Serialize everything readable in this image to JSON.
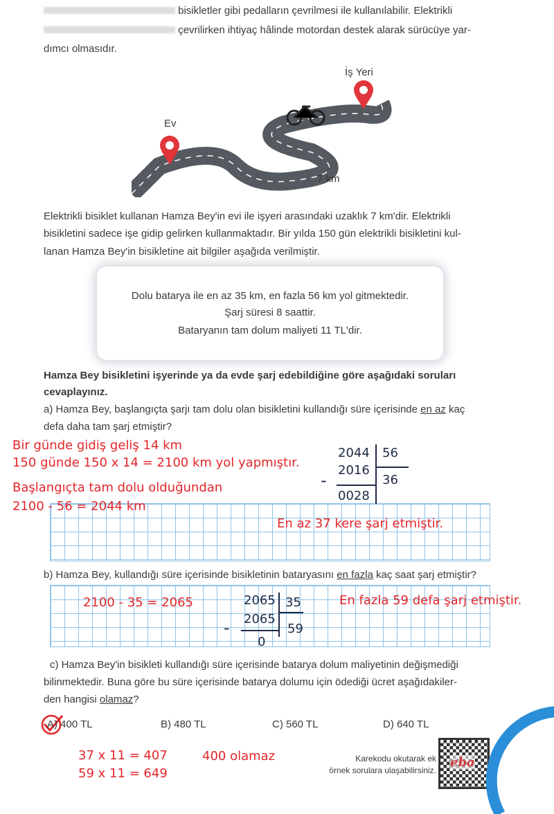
{
  "intro": {
    "line1_visible": "bisikletler gibi pedalların çevrilmesi ile kullanılabilir. Elektrikli",
    "line2_visible": "çevrilirken ihtiyaç hâlinde motordan destek alarak sürücüye yar-",
    "line3": "dımcı olmasıdır."
  },
  "illustration": {
    "workplace_label": "İş Yeri",
    "home_label": "Ev",
    "distance_label": "7 km"
  },
  "paragraph": [
    "Elektrikli bisiklet kullanan Hamza Bey'in evi ile işyeri arasındaki uzaklık 7 km'dir. Elektrikli",
    "bisikletini sadece işe gidip gelirken kullanmaktadır. Bir yılda 150 gün elektrikli bisikletini kul-",
    "lanan Hamza Bey'in bisikletine ait bilgiler aşağıda verilmiştir."
  ],
  "info_box": [
    "Dolu batarya ile en az 35 km, en fazla 56 km yol gitmektedir.",
    "Şarj süresi 8 saattir.",
    "Bataryanın tam dolum maliyeti 11 TL'dir."
  ],
  "instruction": [
    "Hamza Bey bisikletini işyerinde ya da evde şarj edebildiğine göre aşağıdaki soruları",
    "cevaplayınız."
  ],
  "question_a": {
    "line1_pre": "a) Hamza Bey, başlangıçta şarjı tam dolu olan bisikletini kullandığı süre içerisinde ",
    "line1_u": "en az",
    "line1_post": " kaç",
    "line2": "defa daha tam şarj etmiştir?"
  },
  "answer_a": {
    "notes": [
      "Bir günde gidiş geliş 14 km",
      "150 günde  150 x 14 = 2100 km yol yapmıştır.",
      "Başlangıçta tam dolu olduğundan",
      "2100 - 56 = 2044 km"
    ],
    "division": {
      "dividend": "2044",
      "divisor": "56",
      "subtract": "2016",
      "quotient": "36",
      "remainder": "0028",
      "minus": "-"
    },
    "result": "En az 37 kere şarj etmiştir."
  },
  "question_b": {
    "pre": "b) Hamza Bey, kullandığı süre içerisinde bisikletinin bataryasını ",
    "u": "en fazla",
    "post": " kaç saat şarj etmiştir?"
  },
  "answer_b": {
    "note": "2100 - 35 = 2065",
    "division": {
      "dividend": "2065",
      "divisor": "35",
      "subtract": "2065",
      "quotient": "59",
      "remainder": "0",
      "minus": "-"
    },
    "result": "En fazla 59 defa şarj etmiştir."
  },
  "question_c": {
    "line1": "c) Hamza Bey'in bisikleti kullandığı süre içerisinde batarya dolum maliyetinin değişmediği",
    "line2": "bilinmektedir. Buna göre bu süre içerisinde batarya dolumu için ödediği ücret aşağıdakiler-",
    "line3_pre": "den hangisi ",
    "line3_u": "olamaz",
    "line3_post": "?"
  },
  "options": [
    {
      "label": "A) 400 TL",
      "selected": true
    },
    {
      "label": "B) 480 TL"
    },
    {
      "label": "C) 560 TL"
    },
    {
      "label": "D) 640 TL"
    }
  ],
  "answer_c": {
    "notes": [
      "37 x 11 = 407",
      "59 x 11 = 649"
    ],
    "conclusion": "400 olamaz"
  },
  "qr": {
    "caption": [
      "Karekodu okutarak ek",
      "örnek sorulara ulaşabilirsiniz."
    ],
    "logo": "eba"
  },
  "colors": {
    "handwriting": "#e3262a",
    "division": "#1f2a44",
    "grid": "#8fc3e8",
    "accent_arc": "#2a8fd8"
  }
}
